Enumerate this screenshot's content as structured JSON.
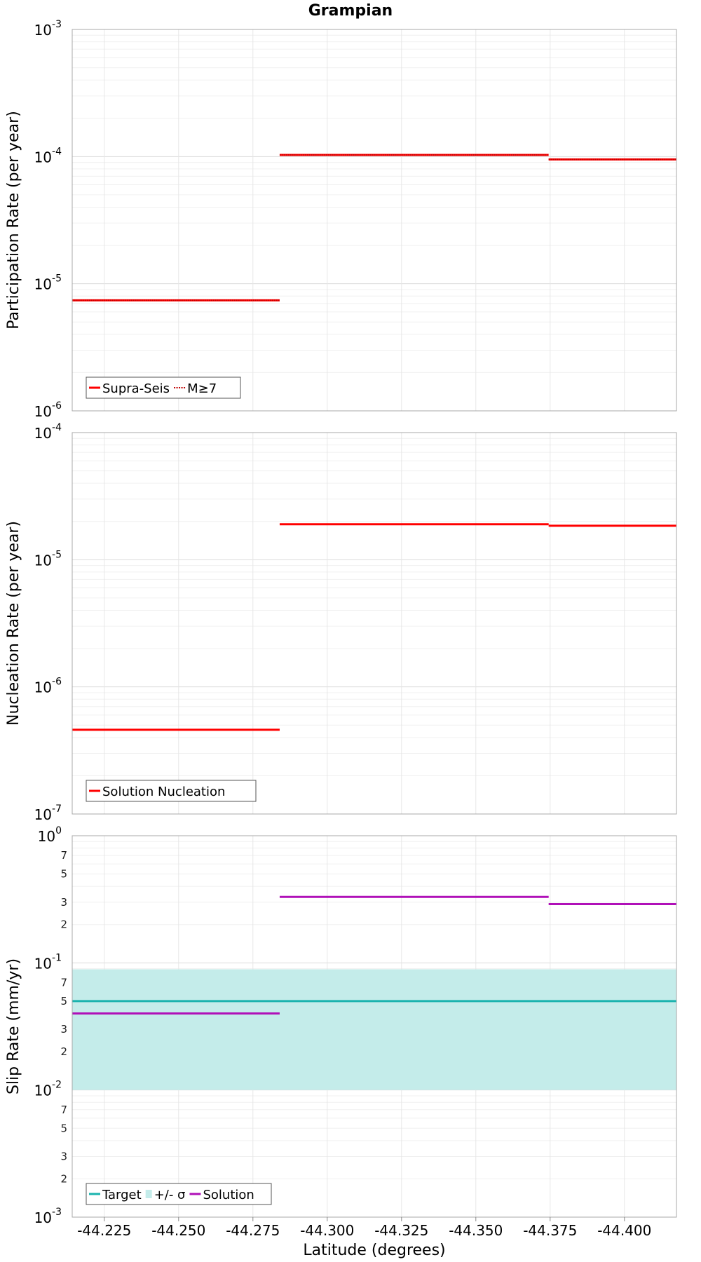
{
  "chart_data": [
    {
      "type": "line",
      "panel": "participation",
      "title": "Grampian",
      "ylabel": "Participation Rate (per year)",
      "yscale": "log",
      "ylim": [
        1e-06,
        0.001
      ],
      "xlim": [
        -44.2142,
        -44.4175
      ],
      "series": [
        {
          "name": "Supra-Seis",
          "color": "#ff0000",
          "style": "solid",
          "segments": [
            {
              "x": [
                -44.2142,
                -44.284
              ],
              "y": 7.4e-06
            },
            {
              "x": [
                -44.284,
                -44.3745
              ],
              "y": 0.000103
            },
            {
              "x": [
                -44.3745,
                -44.4175
              ],
              "y": 9.5e-05
            }
          ]
        },
        {
          "name": "M≥7",
          "color": "#ff0000",
          "style": "dotted",
          "segments": [
            {
              "x": [
                -44.2142,
                -44.284
              ],
              "y": 7.4e-06
            },
            {
              "x": [
                -44.284,
                -44.3745
              ],
              "y": 0.000103
            },
            {
              "x": [
                -44.3745,
                -44.4175
              ],
              "y": 9.5e-05
            }
          ]
        }
      ],
      "legend": "bottom-left"
    },
    {
      "type": "line",
      "panel": "nucleation",
      "ylabel": "Nucleation Rate (per year)",
      "yscale": "log",
      "ylim": [
        1e-07,
        0.0001
      ],
      "xlim": [
        -44.2142,
        -44.4175
      ],
      "series": [
        {
          "name": "Solution Nucleation",
          "color": "#ff0000",
          "style": "solid",
          "segments": [
            {
              "x": [
                -44.2142,
                -44.284
              ],
              "y": 4.6e-07
            },
            {
              "x": [
                -44.284,
                -44.3745
              ],
              "y": 1.9e-05
            },
            {
              "x": [
                -44.3745,
                -44.4175
              ],
              "y": 1.85e-05
            }
          ]
        }
      ],
      "legend": "bottom-left"
    },
    {
      "type": "line",
      "panel": "slip",
      "ylabel": "Slip Rate (mm/yr)",
      "xlabel": "Latitude (degrees)",
      "yscale": "log",
      "ylim": [
        0.001,
        1
      ],
      "xlim": [
        -44.2142,
        -44.4175
      ],
      "x_ticks": [
        "-44.225",
        "-44.250",
        "-44.275",
        "-44.300",
        "-44.325",
        "-44.350",
        "-44.375",
        "-44.400"
      ],
      "x_tick_values": [
        -44.225,
        -44.25,
        -44.275,
        -44.3,
        -44.325,
        -44.35,
        -44.375,
        -44.4
      ],
      "band": {
        "name": "+/- σ",
        "color": "#c4ecea",
        "y": [
          0.01,
          0.089
        ]
      },
      "series": [
        {
          "name": "Target",
          "color": "#1ab3ae",
          "style": "solid",
          "segments": [
            {
              "x": [
                -44.2142,
                -44.4175
              ],
              "y": 0.05
            }
          ]
        },
        {
          "name": "Solution",
          "color": "#b010b8",
          "style": "solid",
          "segments": [
            {
              "x": [
                -44.2142,
                -44.284
              ],
              "y": 0.04
            },
            {
              "x": [
                -44.284,
                -44.3745
              ],
              "y": 0.33
            },
            {
              "x": [
                -44.3745,
                -44.4175
              ],
              "y": 0.29
            }
          ]
        }
      ],
      "legend": "bottom-left"
    }
  ],
  "y_ticks": {
    "participation": [
      {
        "base": "10",
        "exp": "-3"
      },
      {
        "base": "10",
        "exp": "-4"
      },
      {
        "base": "10",
        "exp": "-5"
      },
      {
        "base": "10",
        "exp": "-6"
      }
    ],
    "nucleation": [
      {
        "base": "10",
        "exp": "-4"
      },
      {
        "base": "10",
        "exp": "-5"
      },
      {
        "base": "10",
        "exp": "-6"
      },
      {
        "base": "10",
        "exp": "-7"
      }
    ],
    "slip": [
      {
        "base": "10",
        "exp": "0"
      },
      {
        "base": "10",
        "exp": "-1"
      },
      {
        "base": "10",
        "exp": "-2"
      },
      {
        "base": "10",
        "exp": "-3"
      }
    ],
    "slip_minor_labels": [
      "7",
      "5",
      "3",
      "2"
    ]
  }
}
